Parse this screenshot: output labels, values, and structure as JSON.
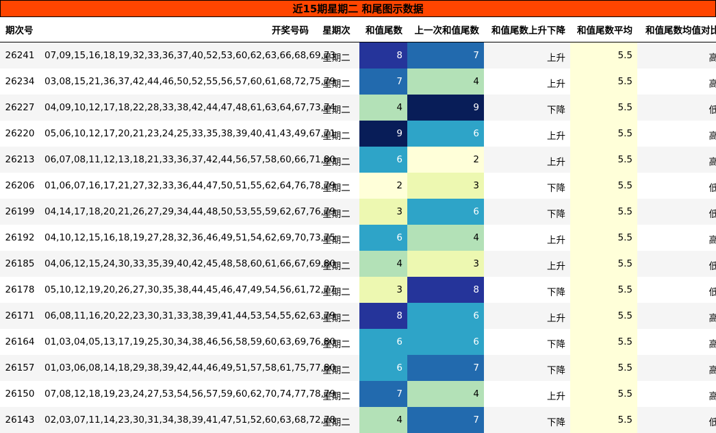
{
  "title": "近15期星期二 和尾图示数据",
  "headers": {
    "issue": "期次号",
    "numbers": "开奖号码",
    "weekday": "星期次",
    "tail": "和值尾数",
    "prev_tail": "上一次和值尾数",
    "trend": "和值尾数上升下降",
    "avg": "和值尾数平均",
    "compare": "和值尾数均值对比"
  },
  "colors": {
    "title_bg": "#ff4500",
    "avg_bg": "#ffffd9",
    "heat_scale": {
      "2": "#ffffd9",
      "3": "#edf8b1",
      "4": "#b3e1b7",
      "6": "#2ea4c8",
      "7": "#226aae",
      "8": "#25349a",
      "9": "#081d58"
    },
    "light_text": "#000000",
    "dark_text": "#ffffff"
  },
  "rows": [
    {
      "issue": "26241",
      "numbers": "07,09,15,16,18,19,32,33,36,37,40,52,53,60,62,63,66,68,69,73",
      "weekday": "星期二",
      "tail": "8",
      "prev_tail": "7",
      "trend": "上升",
      "avg": "5.5",
      "compare": "高"
    },
    {
      "issue": "26234",
      "numbers": "03,08,15,21,36,37,42,44,46,50,52,55,56,57,60,61,68,72,75,79",
      "weekday": "星期二",
      "tail": "7",
      "prev_tail": "4",
      "trend": "上升",
      "avg": "5.5",
      "compare": "高"
    },
    {
      "issue": "26227",
      "numbers": "04,09,10,12,17,18,22,28,33,38,42,44,47,48,61,63,64,67,73,74",
      "weekday": "星期二",
      "tail": "4",
      "prev_tail": "9",
      "trend": "下降",
      "avg": "5.5",
      "compare": "低"
    },
    {
      "issue": "26220",
      "numbers": "05,06,10,12,17,20,21,23,24,25,33,35,38,39,40,41,43,49,67,71",
      "weekday": "星期二",
      "tail": "9",
      "prev_tail": "6",
      "trend": "上升",
      "avg": "5.5",
      "compare": "高"
    },
    {
      "issue": "26213",
      "numbers": "06,07,08,11,12,13,18,21,33,36,37,42,44,56,57,58,60,66,71,80",
      "weekday": "星期二",
      "tail": "6",
      "prev_tail": "2",
      "trend": "上升",
      "avg": "5.5",
      "compare": "高"
    },
    {
      "issue": "26206",
      "numbers": "01,06,07,16,17,21,27,32,33,36,44,47,50,51,55,62,64,76,78,79",
      "weekday": "星期二",
      "tail": "2",
      "prev_tail": "3",
      "trend": "下降",
      "avg": "5.5",
      "compare": "低"
    },
    {
      "issue": "26199",
      "numbers": "04,14,17,18,20,21,26,27,29,34,44,48,50,53,55,59,62,67,76,79",
      "weekday": "星期二",
      "tail": "3",
      "prev_tail": "6",
      "trend": "下降",
      "avg": "5.5",
      "compare": "低"
    },
    {
      "issue": "26192",
      "numbers": "04,10,12,15,16,18,19,27,28,32,36,46,49,51,54,62,69,70,73,75",
      "weekday": "星期二",
      "tail": "6",
      "prev_tail": "4",
      "trend": "上升",
      "avg": "5.5",
      "compare": "高"
    },
    {
      "issue": "26185",
      "numbers": "04,06,12,15,24,30,33,35,39,40,42,45,48,58,60,61,66,67,69,80",
      "weekday": "星期二",
      "tail": "4",
      "prev_tail": "3",
      "trend": "上升",
      "avg": "5.5",
      "compare": "低"
    },
    {
      "issue": "26178",
      "numbers": "05,10,12,19,20,26,27,30,35,38,44,45,46,47,49,54,56,61,72,77",
      "weekday": "星期二",
      "tail": "3",
      "prev_tail": "8",
      "trend": "下降",
      "avg": "5.5",
      "compare": "低"
    },
    {
      "issue": "26171",
      "numbers": "06,08,11,16,20,22,23,30,31,33,38,39,41,44,53,54,55,62,63,79",
      "weekday": "星期二",
      "tail": "8",
      "prev_tail": "6",
      "trend": "上升",
      "avg": "5.5",
      "compare": "高"
    },
    {
      "issue": "26164",
      "numbers": "01,03,04,05,13,17,19,25,30,34,38,46,56,58,59,60,63,69,76,80",
      "weekday": "星期二",
      "tail": "6",
      "prev_tail": "6",
      "trend": "下降",
      "avg": "5.5",
      "compare": "高"
    },
    {
      "issue": "26157",
      "numbers": "01,03,06,08,14,18,29,38,39,42,44,46,49,51,57,58,61,75,77,80",
      "weekday": "星期二",
      "tail": "6",
      "prev_tail": "7",
      "trend": "下降",
      "avg": "5.5",
      "compare": "高"
    },
    {
      "issue": "26150",
      "numbers": "07,08,12,18,19,23,24,27,53,54,56,57,59,60,62,70,74,77,78,79",
      "weekday": "星期二",
      "tail": "7",
      "prev_tail": "4",
      "trend": "上升",
      "avg": "5.5",
      "compare": "高"
    },
    {
      "issue": "26143",
      "numbers": "02,03,07,11,14,23,30,31,34,38,39,41,47,51,52,60,63,68,72,78",
      "weekday": "星期二",
      "tail": "4",
      "prev_tail": "7",
      "trend": "下降",
      "avg": "5.5",
      "compare": "低"
    }
  ]
}
